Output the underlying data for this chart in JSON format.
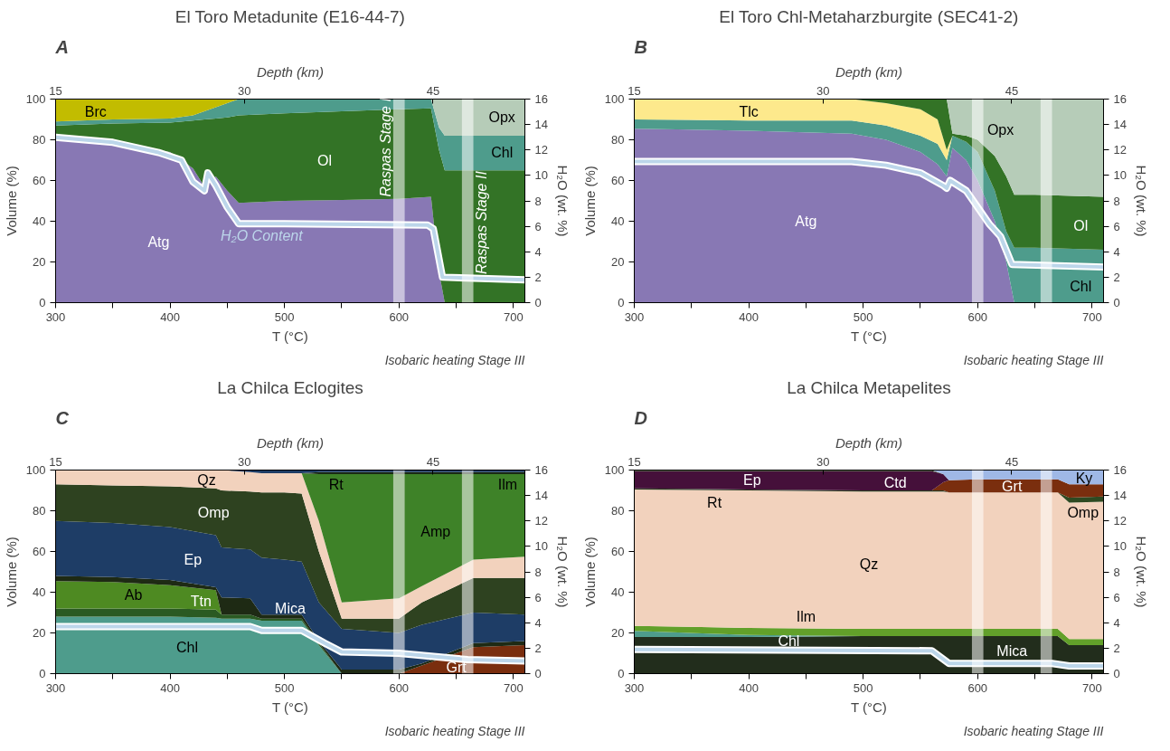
{
  "chart_data": [
    {
      "type": "area",
      "stacked": true,
      "title": "El Toro Metadunite (E16-44-7)",
      "xlabel": "T (°C)",
      "ylabel": "Volume (%)",
      "y2label": "H₂O (wt. %)",
      "x2label": "Depth (km)",
      "annotations": [
        "A",
        "Isobaric heating Stage III"
      ],
      "xlim": [
        300,
        710
      ],
      "xticks": [
        300,
        {
          "value": 350,
          "label": null
        },
        400,
        {
          "value": 450,
          "label": null
        },
        500,
        {
          "value": 550,
          "label": null
        },
        600,
        {
          "value": 650,
          "label": null
        },
        700
      ],
      "ylim": [
        0,
        100
      ],
      "yticks": [
        0,
        20,
        40,
        60,
        80,
        100
      ],
      "y2lim": [
        0,
        16
      ],
      "y2ticks": [
        0,
        2,
        4,
        6,
        8,
        10,
        12,
        14,
        16
      ],
      "x2lim": [
        15,
        52.3
      ],
      "x2ticks": [
        15,
        30,
        45
      ],
      "x": [
        300,
        350,
        400,
        420,
        430,
        440,
        450,
        460,
        500,
        550,
        600,
        628,
        635,
        640,
        660,
        710
      ],
      "bands": [
        {
          "axis": "x",
          "from": 595,
          "to": 605,
          "label": "Raspas Stage I",
          "color": "#ffffff"
        },
        {
          "axis": "x",
          "from": 655,
          "to": 665,
          "label": "Raspas Stage II",
          "color": "#ffffff"
        }
      ],
      "series": [
        {
          "name": "Atg",
          "color": "#8878b4",
          "values": [
            81,
            78,
            74,
            66,
            57,
            62,
            55,
            49,
            50,
            50.5,
            51,
            52,
            15,
            0,
            null,
            null
          ]
        },
        {
          "name": "Ol",
          "color": "#337326",
          "values": [
            6,
            10,
            14.5,
            23.5,
            33,
            28.5,
            36,
            43,
            43,
            43.5,
            44,
            43.5,
            60,
            65,
            65,
            65
          ]
        },
        {
          "name": "Chl",
          "color": "#4e9c8c",
          "values": [
            2,
            2,
            2,
            2.5,
            4,
            5.5,
            7,
            8,
            7,
            6,
            5,
            4.5,
            11,
            17,
            17,
            17
          ]
        },
        {
          "name": "Brc",
          "color": "#c2bc00",
          "values": [
            11,
            10,
            9.5,
            8,
            6,
            4,
            2,
            0,
            null,
            null,
            null,
            null,
            null,
            null,
            null,
            null
          ]
        },
        {
          "name": "Opx",
          "color": "#b6ccb8",
          "values": [
            null,
            null,
            null,
            null,
            null,
            null,
            null,
            null,
            null,
            null,
            null,
            0,
            14,
            18,
            18,
            18
          ]
        },
        {
          "name": "H₂O Content",
          "type": "line",
          "axis": "y2",
          "color": "#bcd6ea",
          "x": [
            300,
            350,
            390,
            410,
            420,
            430,
            433,
            440,
            450,
            460,
            500,
            625,
            630,
            638,
            710
          ],
          "values": [
            13,
            12.6,
            11.8,
            11.2,
            9.5,
            8.8,
            10.2,
            9.2,
            7.5,
            6.2,
            6.2,
            6.1,
            5.8,
            2,
            1.8
          ]
        }
      ]
    },
    {
      "type": "area",
      "stacked": true,
      "title": "El Toro Chl-Metaharzburgite (SEC41-2)",
      "xlabel": "T (°C)",
      "ylabel": "Volume (%)",
      "y2label": "H₂O (wt. %)",
      "x2label": "Depth (km)",
      "annotations": [
        "B",
        "Isobaric heating Stage III"
      ],
      "xlim": [
        300,
        710
      ],
      "xticks": [
        300,
        {
          "value": 350,
          "label": null
        },
        400,
        {
          "value": 450,
          "label": null
        },
        500,
        {
          "value": 550,
          "label": null
        },
        600,
        {
          "value": 650,
          "label": null
        },
        700
      ],
      "ylim": [
        0,
        100
      ],
      "yticks": [
        0,
        20,
        40,
        60,
        80,
        100
      ],
      "y2lim": [
        0,
        16
      ],
      "y2ticks": [
        0,
        2,
        4,
        6,
        8,
        10,
        12,
        14,
        16
      ],
      "x2lim": [
        15,
        52.3
      ],
      "x2ticks": [
        15,
        30,
        45
      ],
      "x": [
        300,
        400,
        490,
        520,
        550,
        565,
        573,
        578,
        590,
        600,
        615,
        625,
        632,
        650,
        710
      ],
      "bands": [
        {
          "axis": "x",
          "from": 595,
          "to": 605,
          "color": "#ffffff"
        },
        {
          "axis": "x",
          "from": 655,
          "to": 665,
          "color": "#ffffff"
        }
      ],
      "series": [
        {
          "name": "Atg",
          "color": "#8878b4",
          "values": [
            85.5,
            84.5,
            83,
            80,
            74,
            68,
            62,
            76,
            70,
            60,
            40,
            20,
            0,
            null,
            null
          ]
        },
        {
          "name": "Chl",
          "color": "#4e9c8c",
          "values": [
            4.5,
            5,
            6.5,
            7,
            8,
            10,
            8,
            6,
            9,
            14,
            15,
            15,
            27,
            27,
            26
          ]
        },
        {
          "name": "Tlc",
          "color": "#fde98c",
          "values": [
            10,
            10.5,
            10.5,
            11,
            13,
            12,
            5,
            0,
            null,
            null,
            null,
            null,
            null,
            null,
            null
          ]
        },
        {
          "name": "Ol",
          "color": "#337326",
          "values": [
            null,
            null,
            0,
            2,
            5,
            10,
            25,
            1,
            3,
            6,
            17,
            27,
            26,
            26,
            26
          ]
        },
        {
          "name": "Opx",
          "color": "#b6ccb8",
          "values": [
            null,
            null,
            null,
            null,
            null,
            null,
            0,
            17,
            18,
            20,
            28,
            38,
            47,
            47,
            48
          ]
        },
        {
          "type": "line",
          "axis": "y2",
          "color": "#bcd6ea",
          "x": [
            300,
            490,
            520,
            550,
            570,
            573,
            576,
            590,
            600,
            610,
            620,
            630,
            710
          ],
          "values": [
            11.1,
            11.1,
            10.8,
            10.2,
            9.2,
            9.0,
            9.6,
            8.8,
            7.5,
            6.2,
            5.2,
            3.0,
            2.8
          ]
        }
      ]
    },
    {
      "type": "area",
      "stacked": true,
      "title": "La Chilca Eclogites",
      "xlabel": "T (°C)",
      "ylabel": "Volume (%)",
      "y2label": "H₂O (wt. %)",
      "x2label": "Depth (km)",
      "annotations": [
        "C",
        "Isobaric heating Stage III"
      ],
      "xlim": [
        300,
        710
      ],
      "xticks": [
        300,
        {
          "value": 350,
          "label": null
        },
        400,
        {
          "value": 450,
          "label": null
        },
        500,
        {
          "value": 550,
          "label": null
        },
        600,
        {
          "value": 650,
          "label": null
        },
        700
      ],
      "ylim": [
        0,
        100
      ],
      "yticks": [
        0,
        20,
        40,
        60,
        80,
        100
      ],
      "y2lim": [
        0,
        16
      ],
      "y2ticks": [
        0,
        2,
        4,
        6,
        8,
        10,
        12,
        14,
        16
      ],
      "x2lim": [
        15,
        52.3
      ],
      "x2ticks": [
        15,
        30,
        45
      ],
      "x": [
        300,
        350,
        400,
        440,
        445,
        470,
        480,
        500,
        515,
        530,
        550,
        600,
        620,
        665,
        710
      ],
      "bands": [
        {
          "axis": "x",
          "from": 595,
          "to": 605,
          "color": "#ffffff"
        },
        {
          "axis": "x",
          "from": 655,
          "to": 665,
          "color": "#ffffff"
        }
      ],
      "series": [
        {
          "name": "Chl",
          "color": "#4e9c8c",
          "values": [
            28,
            28,
            28,
            27.5,
            27,
            27,
            26,
            26,
            26,
            14,
            0,
            null,
            null,
            null,
            null
          ]
        },
        {
          "name": "Grt",
          "color": "#7a2e0e",
          "values": [
            null,
            null,
            null,
            null,
            null,
            null,
            null,
            null,
            null,
            null,
            null,
            0,
            4,
            13,
            14
          ]
        },
        {
          "name": "Ttn",
          "color": "#2a5a22",
          "values": [
            4,
            4,
            4,
            4,
            2,
            2,
            1,
            1,
            1,
            1,
            0,
            null,
            null,
            null,
            null
          ]
        },
        {
          "name": "Ab",
          "color": "#4e8a22",
          "values": [
            13.5,
            13,
            11.5,
            9.5,
            0,
            null,
            null,
            null,
            null,
            null,
            null,
            null,
            null,
            null,
            null
          ]
        },
        {
          "name": "Mica",
          "color": "#1e2a14",
          "values": [
            2.5,
            2.5,
            2.5,
            1.5,
            8.5,
            8,
            2,
            2,
            2,
            1,
            2,
            2,
            1,
            2,
            2
          ]
        },
        {
          "name": "Ep",
          "color": "#1e3d66",
          "values": [
            27,
            26.5,
            26,
            25.5,
            24.5,
            24,
            28,
            27,
            26,
            19,
            20,
            18,
            19,
            15,
            13
          ]
        },
        {
          "name": "Omp",
          "color": "#2e4220",
          "values": [
            18,
            18.5,
            20,
            23,
            28,
            28.5,
            32,
            33,
            33.5,
            25,
            5,
            7,
            11,
            17,
            18
          ]
        },
        {
          "name": "Qz",
          "color": "#f2d2bd",
          "values": [
            7,
            7.5,
            8,
            9,
            10,
            9.5,
            9.5,
            9.5,
            10,
            15,
            8,
            10,
            8,
            9,
            10.5
          ]
        },
        {
          "name": "Amp",
          "color": "#3e8228",
          "values": [
            null,
            null,
            null,
            null,
            null,
            null,
            null,
            null,
            0,
            23,
            63,
            61,
            55,
            42,
            40.5
          ]
        },
        {
          "name": "Rt",
          "color": "#1a2a14",
          "values": [
            null,
            null,
            null,
            null,
            null,
            null,
            null,
            null,
            0,
            1,
            1,
            1,
            1,
            1,
            1
          ]
        },
        {
          "name": "Ilm",
          "color": "#1e3d66",
          "values": [
            null,
            null,
            null,
            null,
            0,
            1,
            1.5,
            1.5,
            1.5,
            1,
            1,
            1,
            1,
            1,
            1
          ]
        },
        {
          "type": "line",
          "axis": "y2",
          "color": "#bcd6ea",
          "x": [
            300,
            470,
            480,
            515,
            535,
            550,
            600,
            660,
            710
          ],
          "values": [
            3.7,
            3.7,
            3.4,
            3.4,
            2.4,
            1.7,
            1.6,
            1.1,
            1.0
          ]
        }
      ]
    },
    {
      "type": "area",
      "stacked": true,
      "title": "La Chilca Metapelites",
      "xlabel": "T (°C)",
      "ylabel": "Volume (%)",
      "y2label": "H₂O (wt. %)",
      "x2label": "Depth (km)",
      "annotations": [
        "D",
        "Isobaric heating Stage III"
      ],
      "xlim": [
        300,
        710
      ],
      "xticks": [
        300,
        {
          "value": 350,
          "label": null
        },
        400,
        {
          "value": 450,
          "label": null
        },
        500,
        {
          "value": 550,
          "label": null
        },
        600,
        {
          "value": 650,
          "label": null
        },
        700
      ],
      "ylim": [
        0,
        100
      ],
      "yticks": [
        0,
        20,
        40,
        60,
        80,
        100
      ],
      "y2lim": [
        0,
        16
      ],
      "y2ticks": [
        0,
        2,
        4,
        6,
        8,
        10,
        12,
        14,
        16
      ],
      "x2lim": [
        15,
        52.3
      ],
      "x2ticks": [
        15,
        30,
        45
      ],
      "x": [
        300,
        400,
        500,
        560,
        570,
        575,
        600,
        670,
        680,
        710
      ],
      "bands": [
        {
          "axis": "x",
          "from": 595,
          "to": 605,
          "color": "#ffffff"
        },
        {
          "axis": "x",
          "from": 655,
          "to": 665,
          "color": "#ffffff"
        }
      ],
      "series": [
        {
          "name": "Mica",
          "color": "#222d1c",
          "values": [
            18,
            18,
            18.5,
            18.5,
            18.5,
            18.5,
            18.5,
            18.5,
            14,
            14
          ]
        },
        {
          "name": "Chl",
          "color": "#4e9c8c",
          "values": [
            3,
            1,
            0,
            null,
            null,
            null,
            null,
            null,
            null,
            null
          ]
        },
        {
          "name": "Ilm",
          "color": "#62a02a",
          "values": [
            2.5,
            3.5,
            3.5,
            3.5,
            3.5,
            3.5,
            3.5,
            3.5,
            3,
            3
          ]
        },
        {
          "name": "Qz",
          "color": "#f2d2bd",
          "values": [
            67,
            67.5,
            67.5,
            67.5,
            67.5,
            67,
            67,
            67,
            67,
            67.5
          ]
        },
        {
          "name": "Omp",
          "color": "#2e4a22",
          "values": [
            null,
            null,
            null,
            null,
            null,
            null,
            null,
            0,
            2.5,
            2.5
          ]
        },
        {
          "name": "Rt",
          "color": "#2a3a20",
          "values": [
            0.5,
            0.5,
            0.5,
            0.5,
            0.5,
            0,
            null,
            null,
            null,
            null
          ]
        },
        {
          "name": "Grt",
          "color": "#7a2e0e",
          "values": [
            null,
            null,
            null,
            0,
            4,
            6,
            6.5,
            6.5,
            6.5,
            6
          ]
        },
        {
          "name": "Ctd",
          "color": "#45103a",
          "values": [
            8.5,
            9,
            9.5,
            9.5,
            4,
            0,
            null,
            null,
            null,
            null
          ]
        },
        {
          "name": "Ep",
          "color": "#3a4a2a",
          "values": [
            0.5,
            0.5,
            0.5,
            0.5,
            0,
            null,
            null,
            null,
            null,
            null
          ]
        },
        {
          "name": "Ky",
          "color": "#9fb8e6",
          "values": [
            null,
            null,
            null,
            0,
            2,
            5,
            4.5,
            4.5,
            7,
            7
          ]
        },
        {
          "type": "line",
          "axis": "y2",
          "color": "#bcd6ea",
          "x": [
            300,
            560,
            575,
            665,
            680,
            710
          ],
          "values": [
            1.9,
            1.8,
            0.8,
            0.8,
            0.6,
            0.6
          ]
        }
      ]
    }
  ]
}
